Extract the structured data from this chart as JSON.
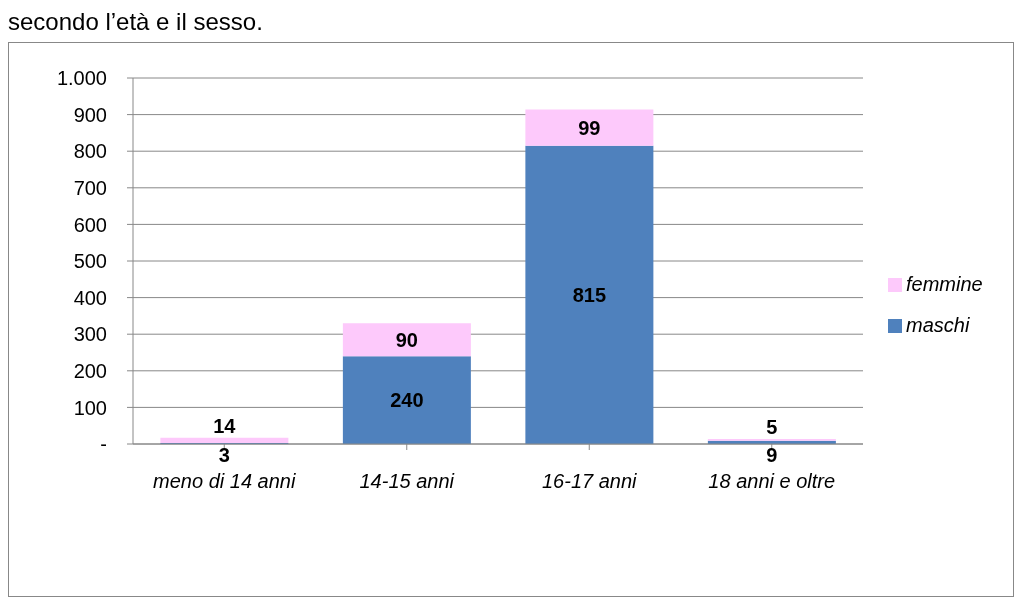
{
  "chart_data": {
    "type": "bar",
    "title": "secondo l’età e il sesso.",
    "categories": [
      "meno di 14 anni",
      "14-15 anni",
      "16-17 anni",
      "18 anni  e oltre"
    ],
    "series": [
      {
        "name": "maschi",
        "color": "#4f81bd",
        "values": [
          3,
          240,
          815,
          9
        ]
      },
      {
        "name": "femmine",
        "color": "#fdc9fb",
        "values": [
          14,
          90,
          99,
          5
        ]
      }
    ],
    "stacked": true,
    "data_labels": true,
    "grid": "y",
    "legend": "right",
    "ylim": [
      0,
      1000
    ],
    "yticks": [
      {
        "value": 0,
        "label": "-"
      },
      100,
      200,
      300,
      400,
      500,
      600,
      700,
      800,
      900,
      {
        "value": 1000,
        "label": "1.000"
      }
    ]
  }
}
